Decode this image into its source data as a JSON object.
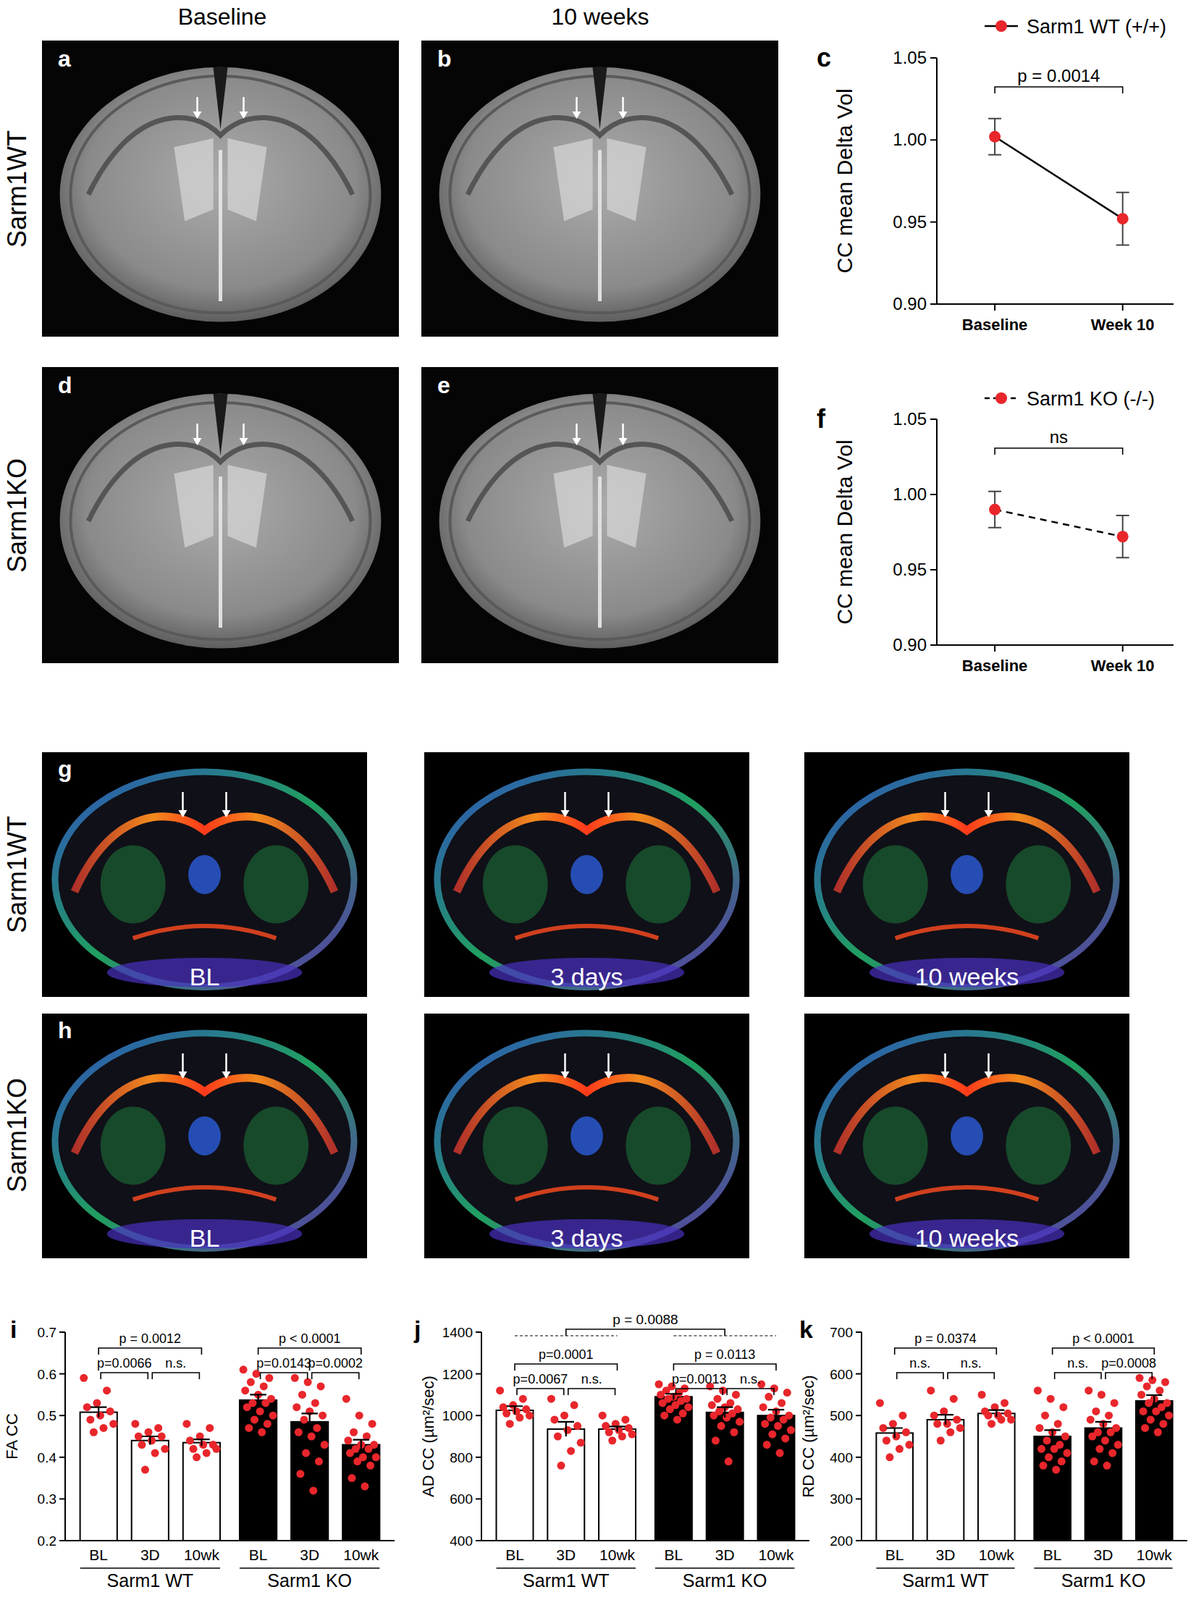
{
  "panels": {
    "headers": [
      "Baseline",
      "10 weeks"
    ],
    "rows": [
      "Sarm1WT",
      "Sarm1KO"
    ],
    "letters": [
      "a",
      "b",
      "d",
      "e",
      "g",
      "h"
    ],
    "dti_labels": [
      "BL",
      "3 days",
      "10 weeks"
    ]
  },
  "chart_data": [
    {
      "type": "line",
      "title": "c",
      "y_label": "CC mean Delta Vol",
      "categories": [
        "Baseline",
        "Week 10"
      ],
      "series": [
        {
          "name": "Sarm1 WT (+/+)",
          "color": "#e8262b",
          "line_style": "solid",
          "marker": "circle",
          "values": [
            1.002,
            0.952
          ],
          "errors": [
            0.011,
            0.016
          ]
        }
      ],
      "ylim": [
        0.9,
        1.05
      ],
      "yticks": [
        {
          "value": 0.9,
          "label": "0.90"
        },
        0.95,
        {
          "value": 1.0,
          "label": "1.00"
        },
        1.05
      ],
      "annotations": [
        {
          "text": "p = 0.0014",
          "from": 0,
          "to": 1
        }
      ]
    },
    {
      "type": "line",
      "title": "f",
      "y_label": "CC mean Delta Vol",
      "categories": [
        "Baseline",
        "Week 10"
      ],
      "series": [
        {
          "name": "Sarm1 KO (-/-)",
          "color": "#e8262b",
          "line_style": "dashed",
          "marker": "circle",
          "values": [
            0.99,
            0.972
          ],
          "errors": [
            0.012,
            0.014
          ]
        }
      ],
      "ylim": [
        0.9,
        1.05
      ],
      "yticks": [
        {
          "value": 0.9,
          "label": "0.90"
        },
        0.95,
        {
          "value": 1.0,
          "label": "1.00"
        },
        1.05
      ],
      "annotations": [
        {
          "text": "ns",
          "from": 0,
          "to": 1
        }
      ]
    },
    {
      "type": "bar",
      "title": "i",
      "y_label": "FA CC",
      "categories": [
        "BL",
        "3D",
        "10wk",
        "BL",
        "3D",
        "10wk"
      ],
      "groups": [
        "Sarm1 WT",
        "Sarm1 KO"
      ],
      "values": [
        0.508,
        0.44,
        0.435,
        0.537,
        0.485,
        0.43
      ],
      "errors": [
        0.012,
        0.01,
        0.008,
        0.013,
        0.02,
        0.012
      ],
      "colors": [
        "#ffffff",
        "#ffffff",
        "#ffffff",
        "#000000",
        "#000000",
        "#000000"
      ],
      "color": "#e8262b",
      "points": [
        [
          0.59,
          0.56,
          0.53,
          0.52,
          0.51,
          0.5,
          0.49,
          0.48,
          0.47,
          0.46
        ],
        [
          0.48,
          0.47,
          0.46,
          0.45,
          0.45,
          0.44,
          0.43,
          0.42,
          0.41,
          0.37
        ],
        [
          0.48,
          0.47,
          0.45,
          0.44,
          0.43,
          0.43,
          0.42,
          0.42,
          0.41,
          0.4
        ],
        [
          0.61,
          0.6,
          0.59,
          0.58,
          0.57,
          0.56,
          0.55,
          0.54,
          0.53,
          0.53,
          0.52,
          0.51,
          0.5,
          0.49,
          0.48,
          0.47,
          0.46
        ],
        [
          0.59,
          0.58,
          0.57,
          0.55,
          0.53,
          0.52,
          0.51,
          0.5,
          0.49,
          0.47,
          0.46,
          0.45,
          0.43,
          0.41,
          0.39,
          0.36,
          0.32
        ],
        [
          0.54,
          0.5,
          0.48,
          0.46,
          0.45,
          0.44,
          0.43,
          0.43,
          0.42,
          0.42,
          0.41,
          0.4,
          0.4,
          0.39,
          0.38,
          0.35,
          0.33
        ]
      ],
      "ylim": [
        0.2,
        0.7
      ],
      "yticks": [
        0.2,
        0.3,
        0.4,
        0.5,
        0.6,
        0.7
      ],
      "annotations": [
        {
          "text": "p=0.0066",
          "from": 0,
          "to": 1
        },
        {
          "text": "n.s.",
          "from": 1,
          "to": 2
        },
        {
          "text": "p = 0.0012",
          "from": 0,
          "to": 2
        },
        {
          "text": "p=0.0143",
          "from": 3,
          "to": 4
        },
        {
          "text": "p=0.0002",
          "from": 4,
          "to": 5
        },
        {
          "text": "p < 0.0001",
          "from": 3,
          "to": 5
        }
      ]
    },
    {
      "type": "bar",
      "title": "j",
      "y_label": "AD CC (µm²/sec)",
      "categories": [
        "BL",
        "3D",
        "10wk",
        "BL",
        "3D",
        "10wk"
      ],
      "groups": [
        "Sarm1 WT",
        "Sarm1 KO"
      ],
      "values": [
        1025,
        935,
        935,
        1090,
        1015,
        1000
      ],
      "errors": [
        20,
        35,
        12,
        14,
        25,
        28
      ],
      "colors": [
        "#ffffff",
        "#ffffff",
        "#ffffff",
        "#000000",
        "#000000",
        "#000000"
      ],
      "color": "#e8262b",
      "points": [
        [
          1120,
          1080,
          1050,
          1040,
          1030,
          1020,
          1010,
          1000,
          990,
          960
        ],
        [
          1080,
          1050,
          1000,
          980,
          950,
          930,
          900,
          870,
          830,
          760
        ],
        [
          1000,
          980,
          960,
          950,
          940,
          930,
          920,
          910,
          900,
          880
        ],
        [
          1150,
          1140,
          1130,
          1120,
          1110,
          1100,
          1090,
          1080,
          1080,
          1070,
          1060,
          1050,
          1040,
          1030,
          1010,
          1000,
          980
        ],
        [
          1140,
          1120,
          1100,
          1080,
          1060,
          1050,
          1040,
          1030,
          1020,
          1010,
          1000,
          990,
          970,
          950,
          920,
          880,
          780
        ],
        [
          1150,
          1130,
          1110,
          1090,
          1060,
          1040,
          1020,
          1000,
          990,
          980,
          960,
          950,
          930,
          910,
          890,
          860,
          820
        ]
      ],
      "ylim": [
        400,
        1400
      ],
      "yticks": [
        400,
        600,
        800,
        1000,
        1200,
        1400
      ],
      "annotations": [
        {
          "text": "p=0.0067",
          "from": 0,
          "to": 1
        },
        {
          "text": "n.s.",
          "from": 1,
          "to": 2
        },
        {
          "text": "p=0.0001",
          "from": 0,
          "to": 2
        },
        {
          "text": "p=0.0013",
          "from": 3,
          "to": 4
        },
        {
          "text": "n.s.",
          "from": 4,
          "to": 5
        },
        {
          "text": "p = 0.0113",
          "from": 3,
          "to": 5
        },
        {
          "text": "p = 0.0088",
          "from": 1,
          "to": 4
        }
      ]
    },
    {
      "type": "bar",
      "title": "k",
      "y_label": "RD CC (µm²/sec)",
      "categories": [
        "BL",
        "3D",
        "10wk",
        "BL",
        "3D",
        "10wk"
      ],
      "groups": [
        "Sarm1 WT",
        "Sarm1 KO"
      ],
      "values": [
        458,
        490,
        505,
        450,
        470,
        535
      ],
      "errors": [
        12,
        12,
        8,
        15,
        15,
        14
      ],
      "colors": [
        "#ffffff",
        "#ffffff",
        "#ffffff",
        "#000000",
        "#000000",
        "#000000"
      ],
      "color": "#e8262b",
      "points": [
        [
          530,
          500,
          480,
          470,
          460,
          450,
          440,
          430,
          420,
          400
        ],
        [
          560,
          540,
          510,
          500,
          490,
          480,
          480,
          470,
          460,
          440
        ],
        [
          550,
          530,
          520,
          510,
          505,
          500,
          500,
          490,
          490,
          480
        ],
        [
          560,
          540,
          520,
          500,
          480,
          470,
          460,
          450,
          440,
          430,
          420,
          420,
          410,
          400,
          390,
          380,
          370
        ],
        [
          560,
          550,
          530,
          510,
          500,
          490,
          480,
          470,
          460,
          460,
          450,
          440,
          430,
          420,
          410,
          390,
          380
        ],
        [
          590,
          585,
          580,
          570,
          560,
          550,
          540,
          530,
          530,
          520,
          510,
          510,
          500,
          490,
          480,
          470,
          460
        ]
      ],
      "ylim": [
        200,
        700
      ],
      "yticks": [
        200,
        300,
        400,
        500,
        600,
        700
      ],
      "annotations": [
        {
          "text": "n.s.",
          "from": 0,
          "to": 1
        },
        {
          "text": "n.s.",
          "from": 1,
          "to": 2
        },
        {
          "text": "p = 0.0374",
          "from": 0,
          "to": 2
        },
        {
          "text": "n.s.",
          "from": 3,
          "to": 4
        },
        {
          "text": "p=0.0008",
          "from": 4,
          "to": 5
        },
        {
          "text": "p < 0.0001",
          "from": 3,
          "to": 5
        }
      ]
    }
  ]
}
